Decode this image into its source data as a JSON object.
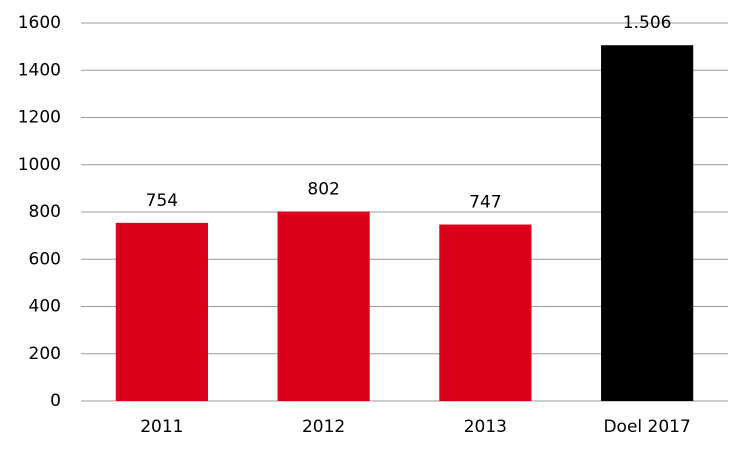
{
  "chart_data": {
    "type": "bar",
    "categories": [
      "2011",
      "2012",
      "2013",
      "Doel 2017"
    ],
    "values": [
      754,
      802,
      747,
      1506
    ],
    "value_labels": [
      "754",
      "802",
      "747",
      "1.506"
    ],
    "colors": [
      "#d9001b",
      "#d9001b",
      "#d9001b",
      "#000000"
    ],
    "ylim": [
      0,
      1600
    ],
    "yticks": [
      0,
      200,
      400,
      600,
      800,
      1000,
      1200,
      1400,
      1600
    ],
    "grid": true
  }
}
